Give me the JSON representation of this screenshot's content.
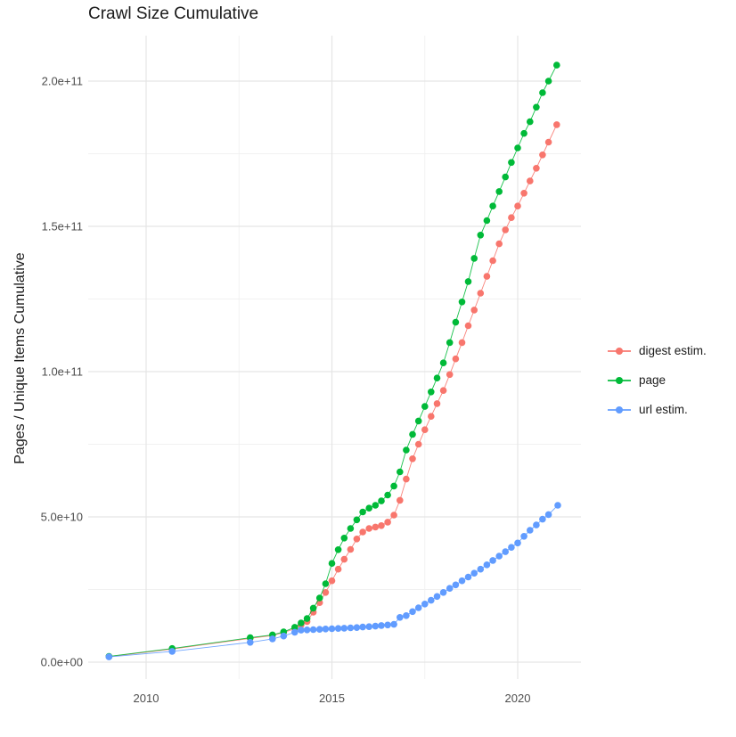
{
  "title": "Crawl Size Cumulative",
  "y_axis": {
    "title": "Pages / Unique Items Cumulative",
    "tick_labels": [
      "0.0e+00",
      "5.0e+10",
      "1.0e+11",
      "1.5e+11",
      "2.0e+11"
    ],
    "tick_values_e9": [
      0,
      50,
      100,
      150,
      200
    ],
    "minor_values_e9": [
      25,
      75,
      125,
      175
    ]
  },
  "x_axis": {
    "tick_labels": [
      "2010",
      "2015",
      "2020"
    ],
    "tick_values": [
      2010,
      2015,
      2020
    ],
    "minor_values": [
      2012.5,
      2017.5
    ]
  },
  "legend": {
    "items": [
      {
        "label": "digest estim.",
        "color": "#F8766D"
      },
      {
        "label": "page",
        "color": "#00BA38"
      },
      {
        "label": "url estim.",
        "color": "#619CFF"
      }
    ]
  },
  "style_colors": {
    "grid_major": "#E5E5E5",
    "grid_minor": "#F1F1F1",
    "tick_text": "#4D4D4D"
  },
  "chart_data": {
    "type": "scatter",
    "title": "Crawl Size Cumulative",
    "xlabel": "",
    "ylabel": "Pages / Unique Items Cumulative",
    "x_unit": "year (decimal)",
    "y_unit": "items, stored as billions (1e9)",
    "xlim": [
      2008.45,
      2021.65
    ],
    "ylim_e9": [
      -10,
      216
    ],
    "grid": "on",
    "legend_position": "right",
    "series": [
      {
        "name": "digest estim.",
        "color": "#F8766D",
        "points": [
          [
            2009.0,
            1.9
          ],
          [
            2010.7,
            4.5
          ],
          [
            2012.8,
            8.2
          ],
          [
            2013.4,
            9.2
          ],
          [
            2013.7,
            10.2
          ],
          [
            2014.0,
            11.5
          ],
          [
            2014.17,
            12.8
          ],
          [
            2014.33,
            14
          ],
          [
            2014.5,
            17.2
          ],
          [
            2014.67,
            20.5
          ],
          [
            2014.83,
            24
          ],
          [
            2015.0,
            28
          ],
          [
            2015.17,
            32
          ],
          [
            2015.33,
            35.4
          ],
          [
            2015.5,
            38.8
          ],
          [
            2015.67,
            42.4
          ],
          [
            2015.83,
            44.8
          ],
          [
            2016.0,
            46
          ],
          [
            2016.17,
            46.5
          ],
          [
            2016.33,
            47
          ],
          [
            2016.5,
            48.2
          ],
          [
            2016.67,
            50.6
          ],
          [
            2016.83,
            55.7
          ],
          [
            2017.0,
            63
          ],
          [
            2017.17,
            70
          ],
          [
            2017.33,
            75
          ],
          [
            2017.5,
            80
          ],
          [
            2017.67,
            84.6
          ],
          [
            2017.83,
            89
          ],
          [
            2018.0,
            93.5
          ],
          [
            2018.17,
            99
          ],
          [
            2018.33,
            104.4
          ],
          [
            2018.5,
            110
          ],
          [
            2018.67,
            115.8
          ],
          [
            2018.83,
            121.2
          ],
          [
            2019.0,
            127
          ],
          [
            2019.17,
            132.8
          ],
          [
            2019.33,
            138.2
          ],
          [
            2019.5,
            144
          ],
          [
            2019.67,
            148.8
          ],
          [
            2019.83,
            153
          ],
          [
            2020.0,
            157
          ],
          [
            2020.17,
            161.4
          ],
          [
            2020.33,
            165.6
          ],
          [
            2020.5,
            170
          ],
          [
            2020.67,
            174.6
          ],
          [
            2020.83,
            179
          ],
          [
            2021.05,
            185
          ]
        ]
      },
      {
        "name": "page",
        "color": "#00BA38",
        "points": [
          [
            2009.0,
            2.0
          ],
          [
            2010.7,
            4.7
          ],
          [
            2012.8,
            8.4
          ],
          [
            2013.4,
            9.4
          ],
          [
            2013.7,
            10.4
          ],
          [
            2014.0,
            12
          ],
          [
            2014.17,
            13.5
          ],
          [
            2014.33,
            15
          ],
          [
            2014.5,
            18.6
          ],
          [
            2014.67,
            22.1
          ],
          [
            2014.83,
            27
          ],
          [
            2015.0,
            34
          ],
          [
            2015.17,
            38.7
          ],
          [
            2015.33,
            42.7
          ],
          [
            2015.5,
            46
          ],
          [
            2015.67,
            49
          ],
          [
            2015.83,
            51.7
          ],
          [
            2016.0,
            53
          ],
          [
            2016.17,
            54
          ],
          [
            2016.33,
            55.5
          ],
          [
            2016.5,
            57.5
          ],
          [
            2016.67,
            60.6
          ],
          [
            2016.83,
            65.5
          ],
          [
            2017.0,
            73
          ],
          [
            2017.17,
            78.4
          ],
          [
            2017.33,
            83
          ],
          [
            2017.5,
            88
          ],
          [
            2017.67,
            93
          ],
          [
            2017.83,
            97.8
          ],
          [
            2018.0,
            103
          ],
          [
            2018.17,
            110
          ],
          [
            2018.33,
            117
          ],
          [
            2018.5,
            124
          ],
          [
            2018.67,
            131
          ],
          [
            2018.83,
            139
          ],
          [
            2019.0,
            147
          ],
          [
            2019.17,
            152
          ],
          [
            2019.33,
            157
          ],
          [
            2019.5,
            162
          ],
          [
            2019.67,
            167
          ],
          [
            2019.83,
            172
          ],
          [
            2020.0,
            177
          ],
          [
            2020.17,
            182
          ],
          [
            2020.33,
            186
          ],
          [
            2020.5,
            191
          ],
          [
            2020.67,
            196
          ],
          [
            2020.83,
            200
          ],
          [
            2021.05,
            205.5
          ]
        ]
      },
      {
        "name": "url estim.",
        "color": "#619CFF",
        "points": [
          [
            2009.0,
            1.8
          ],
          [
            2010.7,
            3.7
          ],
          [
            2012.8,
            6.8
          ],
          [
            2013.4,
            8.0
          ],
          [
            2013.7,
            9.0
          ],
          [
            2014.0,
            10.3
          ],
          [
            2014.17,
            11.0
          ],
          [
            2014.33,
            11.1
          ],
          [
            2014.5,
            11.2
          ],
          [
            2014.67,
            11.3
          ],
          [
            2014.83,
            11.4
          ],
          [
            2015.0,
            11.5
          ],
          [
            2015.17,
            11.6
          ],
          [
            2015.33,
            11.7
          ],
          [
            2015.5,
            11.8
          ],
          [
            2015.67,
            11.9
          ],
          [
            2015.83,
            12.1
          ],
          [
            2016.0,
            12.2
          ],
          [
            2016.17,
            12.4
          ],
          [
            2016.33,
            12.6
          ],
          [
            2016.5,
            12.8
          ],
          [
            2016.67,
            13.0
          ],
          [
            2016.83,
            15.4
          ],
          [
            2017.0,
            16
          ],
          [
            2017.17,
            17.4
          ],
          [
            2017.33,
            18.7
          ],
          [
            2017.5,
            20
          ],
          [
            2017.67,
            21.3
          ],
          [
            2017.83,
            22.6
          ],
          [
            2018.0,
            24
          ],
          [
            2018.17,
            25.4
          ],
          [
            2018.33,
            26.6
          ],
          [
            2018.5,
            28
          ],
          [
            2018.67,
            29.3
          ],
          [
            2018.83,
            30.6
          ],
          [
            2019.0,
            32
          ],
          [
            2019.17,
            33.5
          ],
          [
            2019.33,
            35
          ],
          [
            2019.5,
            36.5
          ],
          [
            2019.67,
            38
          ],
          [
            2019.83,
            39.5
          ],
          [
            2020.0,
            41
          ],
          [
            2020.17,
            43.3
          ],
          [
            2020.33,
            45.4
          ],
          [
            2020.5,
            47.2
          ],
          [
            2020.67,
            49.2
          ],
          [
            2020.83,
            50.8
          ],
          [
            2021.08,
            54
          ]
        ]
      }
    ]
  }
}
